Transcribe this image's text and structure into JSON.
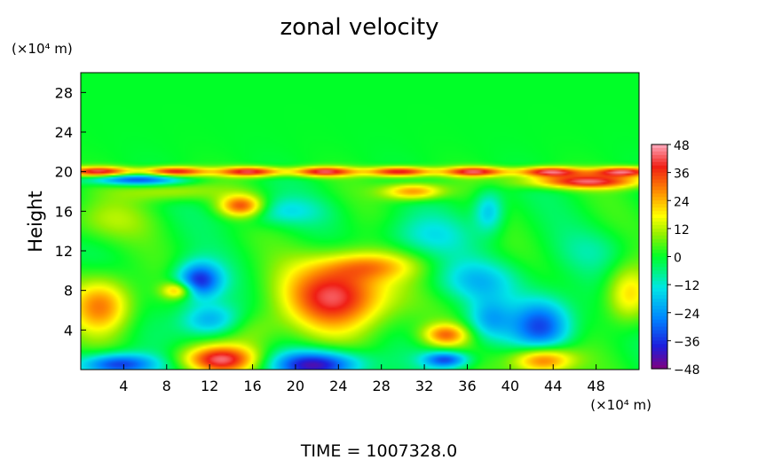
{
  "chart_data": {
    "type": "heatmap",
    "title": "zonal velocity",
    "ylabel": "Height",
    "y_unit_label": "(×10⁴ m)",
    "x_unit_label": "(×10⁴ m)",
    "footer": "TIME  =  1007328.0",
    "xlim": [
      0,
      52
    ],
    "ylim": [
      0,
      30
    ],
    "x_ticks": [
      "4",
      "8",
      "12",
      "16",
      "20",
      "24",
      "28",
      "32",
      "36",
      "40",
      "44",
      "48"
    ],
    "x_tick_values": [
      4,
      8,
      12,
      16,
      20,
      24,
      28,
      32,
      36,
      40,
      44,
      48
    ],
    "y_ticks": [
      "4",
      "8",
      "12",
      "16",
      "20",
      "24",
      "28"
    ],
    "y_tick_values": [
      4,
      8,
      12,
      16,
      20,
      24,
      28
    ],
    "colorbar": {
      "range": [
        -48,
        48
      ],
      "tick_labels": [
        "48",
        "36",
        "24",
        "12",
        "0",
        "−12",
        "−24",
        "−36",
        "−48"
      ],
      "tick_values": [
        48,
        36,
        24,
        12,
        0,
        -12,
        -24,
        -36,
        -48
      ]
    },
    "features": [
      {
        "x": 2,
        "y": 6.5,
        "sx": 2.0,
        "sy": 2.0,
        "value": 30
      },
      {
        "x": 3.5,
        "y": 0.5,
        "sx": 2.5,
        "sy": 0.8,
        "value": -38
      },
      {
        "x": 11,
        "y": 9,
        "sx": 1.5,
        "sy": 1.3,
        "value": -38
      },
      {
        "x": 12,
        "y": 5,
        "sx": 2.0,
        "sy": 1.2,
        "value": -24
      },
      {
        "x": 13,
        "y": 1,
        "sx": 2.5,
        "sy": 1.0,
        "value": 40
      },
      {
        "x": 15,
        "y": 16.5,
        "sx": 1.5,
        "sy": 0.8,
        "value": 36
      },
      {
        "x": 8.5,
        "y": 18,
        "sx": 3.0,
        "sy": 0.7,
        "value": 14
      },
      {
        "x": 5,
        "y": 19.2,
        "sx": 3.0,
        "sy": 0.4,
        "value": -34
      },
      {
        "x": 24,
        "y": 7.5,
        "sx": 3.5,
        "sy": 2.5,
        "value": 42
      },
      {
        "x": 22,
        "y": 0.5,
        "sx": 3.0,
        "sy": 1.0,
        "value": -42
      },
      {
        "x": 31,
        "y": 18,
        "sx": 2.0,
        "sy": 0.6,
        "value": 30
      },
      {
        "x": 34,
        "y": 3.5,
        "sx": 1.5,
        "sy": 0.8,
        "value": 28
      },
      {
        "x": 34,
        "y": 1,
        "sx": 1.5,
        "sy": 0.6,
        "value": -34
      },
      {
        "x": 43,
        "y": 4.5,
        "sx": 2.0,
        "sy": 2.0,
        "value": -34
      },
      {
        "x": 43,
        "y": 1,
        "sx": 2.0,
        "sy": 1.0,
        "value": 38
      },
      {
        "x": 47,
        "y": 19,
        "sx": 4.0,
        "sy": 0.5,
        "value": 40
      },
      {
        "x": 51,
        "y": 7.5,
        "sx": 1.5,
        "sy": 2.0,
        "value": 22
      },
      {
        "x": 37,
        "y": 9,
        "sx": 3.0,
        "sy": 1.5,
        "value": -16
      },
      {
        "x": 32,
        "y": 13.5,
        "sx": 3.0,
        "sy": 1.5,
        "value": -12
      },
      {
        "x": 38,
        "y": 16,
        "sx": 1.0,
        "sy": 1.5,
        "value": -20
      },
      {
        "x": 18,
        "y": 16,
        "sx": 3.0,
        "sy": 1.0,
        "value": -14
      },
      {
        "x": 2,
        "y": 15,
        "sx": 3.0,
        "sy": 1.5,
        "value": 10
      },
      {
        "x": 27,
        "y": 10.5,
        "sx": 3.0,
        "sy": 1.0,
        "value": 18
      },
      {
        "x": 38,
        "y": 5,
        "sx": 1.5,
        "sy": 1.5,
        "value": -18
      },
      {
        "x": 9,
        "y": 8,
        "sx": 1.0,
        "sy": 0.6,
        "value": 26
      },
      {
        "x": 16,
        "y": 4,
        "sx": 2.0,
        "sy": 1.5,
        "value": 10
      },
      {
        "x": 48,
        "y": 12,
        "sx": 2.5,
        "sy": 1.5,
        "value": -6
      }
    ],
    "jet_layer": {
      "y": 20,
      "thickness": 0.35,
      "value": 42
    }
  }
}
